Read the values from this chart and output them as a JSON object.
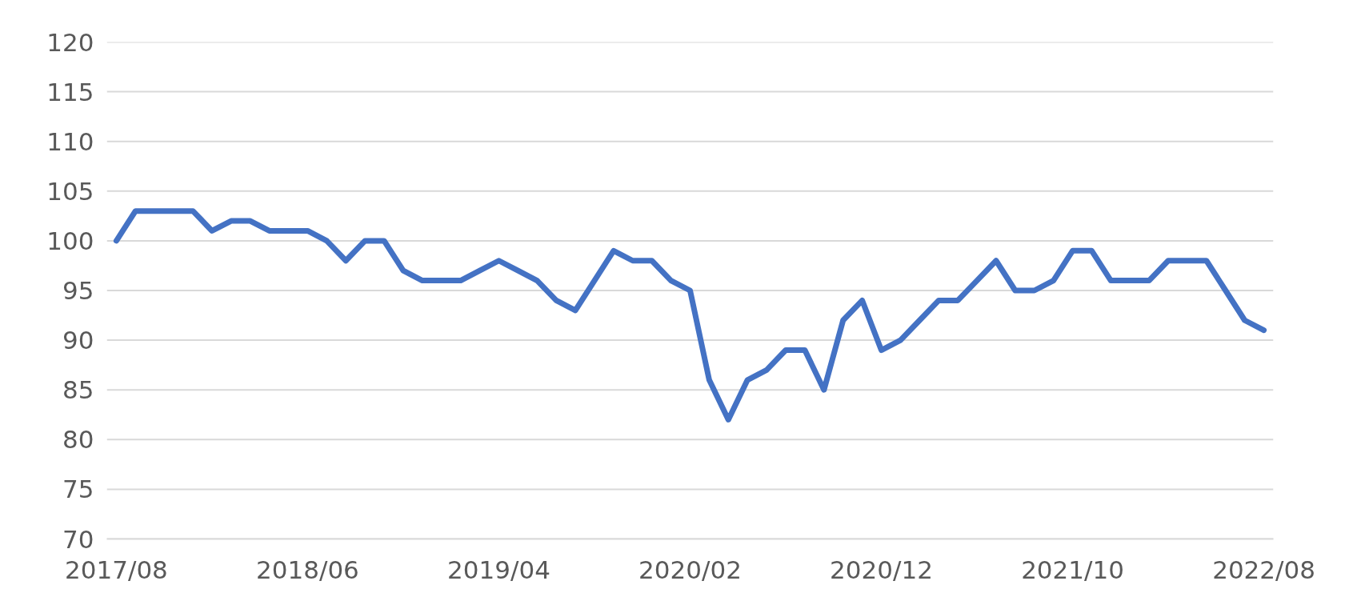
{
  "chart_data": {
    "type": "line",
    "categories": [
      "2017/08",
      null,
      null,
      null,
      null,
      null,
      null,
      null,
      null,
      null,
      "2018/06",
      null,
      null,
      null,
      null,
      null,
      null,
      null,
      null,
      null,
      "2019/04",
      null,
      null,
      null,
      null,
      null,
      null,
      null,
      null,
      null,
      "2020/02",
      null,
      null,
      null,
      null,
      null,
      null,
      null,
      null,
      null,
      "2020/12",
      null,
      null,
      null,
      null,
      null,
      null,
      null,
      null,
      null,
      "2021/10",
      null,
      null,
      null,
      null,
      null,
      null,
      null,
      null,
      null,
      "2022/08"
    ],
    "series": [
      {
        "color": "#4472c4",
        "values": [
          100,
          103,
          103,
          103,
          103,
          101,
          102,
          102,
          101,
          101,
          101,
          100,
          98,
          100,
          100,
          97,
          96,
          96,
          96,
          97,
          98,
          97,
          96,
          94,
          93,
          96,
          99,
          98,
          98,
          96,
          95,
          86,
          82,
          86,
          87,
          89,
          89,
          85,
          92,
          94,
          89,
          90,
          92,
          94,
          94,
          96,
          98,
          95,
          95,
          96,
          99,
          99,
          96,
          96,
          96,
          98,
          98,
          98,
          95,
          92,
          91
        ]
      }
    ],
    "ylim": [
      70,
      120
    ],
    "yticks": [
      70,
      75,
      80,
      85,
      90,
      95,
      100,
      105,
      110,
      115,
      120
    ],
    "grid": "y"
  }
}
